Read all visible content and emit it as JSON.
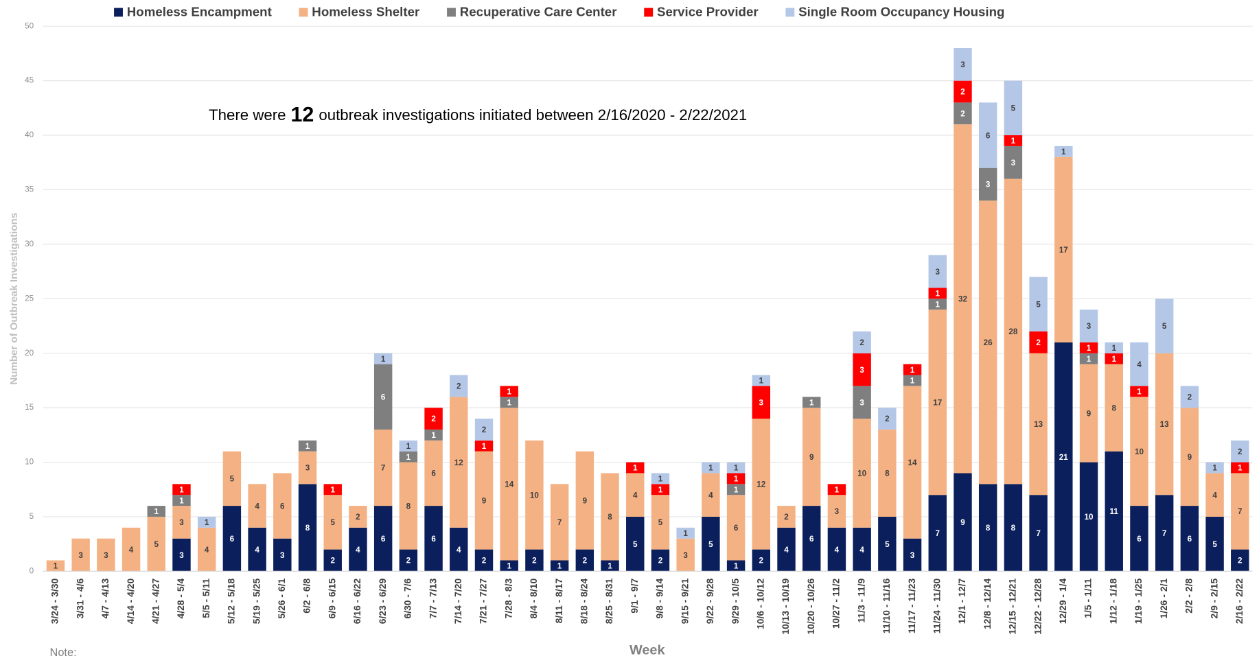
{
  "chart_data": {
    "type": "stacked_bar",
    "annotation": {
      "before": "There were",
      "count": 12,
      "after": "outbreak investigations initiated between 2/16/2020 - 2/22/2021"
    },
    "note": "Note:",
    "x_label": "Week",
    "y_label": "Number of Outbreak Investigations",
    "categories": [
      "3/24 - 3/30",
      "3/31 - 4/6",
      "4/7 - 4/13",
      "4/14 - 4/20",
      "4/21 - 4/27",
      "4/28 - 5/4",
      "5/5 - 5/11",
      "5/12 - 5/18",
      "5/19 - 5/25",
      "5/26 - 6/1",
      "6/2 - 6/8",
      "6/9 - 6/15",
      "6/16 - 6/22",
      "6/23 - 6/29",
      "6/30 - 7/6",
      "7/7 - 7/13",
      "7/14 - 7/20",
      "7/21 - 7/27",
      "7/28 - 8/3",
      "8/4 - 8/10",
      "8/11 - 8/17",
      "8/18 - 8/24",
      "8/25 - 8/31",
      "9/1 - 9/7",
      "9/8 - 9/14",
      "9/15 - 9/21",
      "9/22 - 9/28",
      "9/29 - 10/5",
      "10/6 - 10/12",
      "10/13 - 10/19",
      "10/20 - 10/26",
      "10/27 - 11/2",
      "11/3 - 11/9",
      "11/10 - 11/16",
      "11/17 - 11/23",
      "11/24 - 11/30",
      "12/1 - 12/7",
      "12/8 - 12/14",
      "12/15 - 12/21",
      "12/22 - 12/28",
      "12/29 - 1/4",
      "1/5 - 1/11",
      "1/12 - 1/18",
      "1/19 - 1/25",
      "1/26 - 2/1",
      "2/2 - 2/8",
      "2/9 - 2/15",
      "2/16 - 2/22"
    ],
    "series": [
      {
        "name": "Homeless Encampment",
        "color": "#0b1f5c",
        "label_color": "#ffffff",
        "values": [
          0,
          0,
          0,
          0,
          0,
          3,
          0,
          6,
          4,
          3,
          8,
          2,
          4,
          6,
          2,
          6,
          4,
          2,
          1,
          2,
          1,
          2,
          1,
          5,
          2,
          0,
          5,
          1,
          2,
          4,
          6,
          4,
          4,
          5,
          3,
          7,
          9,
          8,
          8,
          7,
          21,
          10,
          11,
          6,
          7,
          6,
          5,
          2
        ]
      },
      {
        "name": "Homeless Shelter",
        "color": "#f4b183",
        "label_color": "#404040",
        "values": [
          1,
          3,
          3,
          4,
          5,
          3,
          4,
          5,
          4,
          6,
          3,
          5,
          2,
          7,
          8,
          6,
          12,
          9,
          14,
          10,
          7,
          9,
          8,
          4,
          5,
          3,
          4,
          6,
          12,
          2,
          9,
          3,
          10,
          8,
          14,
          17,
          32,
          26,
          28,
          13,
          17,
          9,
          8,
          10,
          13,
          9,
          4,
          7
        ]
      },
      {
        "name": "Recuperative Care Center",
        "color": "#7f7f7f",
        "label_color": "#ffffff",
        "values": [
          0,
          0,
          0,
          0,
          1,
          1,
          0,
          0,
          0,
          0,
          1,
          0,
          0,
          6,
          1,
          1,
          0,
          0,
          1,
          0,
          0,
          0,
          0,
          0,
          0,
          0,
          0,
          1,
          0,
          0,
          1,
          0,
          3,
          0,
          1,
          1,
          2,
          3,
          3,
          0,
          0,
          1,
          0,
          0,
          0,
          0,
          0,
          0
        ]
      },
      {
        "name": "Service Provider",
        "color": "#ff0000",
        "label_color": "#ffffff",
        "values": [
          0,
          0,
          0,
          0,
          0,
          1,
          0,
          0,
          0,
          0,
          0,
          1,
          0,
          0,
          0,
          2,
          0,
          1,
          1,
          0,
          0,
          0,
          0,
          1,
          1,
          0,
          0,
          1,
          3,
          0,
          0,
          1,
          3,
          0,
          1,
          1,
          2,
          0,
          1,
          2,
          0,
          1,
          1,
          1,
          0,
          0,
          0,
          1
        ]
      },
      {
        "name": "Single Room Occupancy Housing",
        "color": "#b4c7e7",
        "label_color": "#404040",
        "values": [
          0,
          0,
          0,
          0,
          0,
          0,
          1,
          0,
          0,
          0,
          0,
          0,
          0,
          1,
          1,
          0,
          2,
          2,
          0,
          0,
          0,
          0,
          0,
          0,
          1,
          1,
          1,
          1,
          1,
          0,
          0,
          0,
          2,
          2,
          0,
          3,
          3,
          6,
          5,
          5,
          1,
          3,
          1,
          4,
          5,
          2,
          1,
          2
        ]
      }
    ],
    "ylim": [
      0,
      50
    ],
    "yticks": [
      0,
      5,
      10,
      15,
      20,
      25,
      30,
      35,
      40,
      45,
      50
    ],
    "grid": true
  }
}
